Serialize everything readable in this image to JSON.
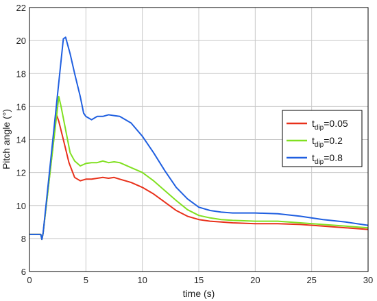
{
  "chart_data": {
    "type": "line",
    "xlabel": "time (s)",
    "ylabel": "Pitch angle (°)",
    "xlim": [
      0,
      30
    ],
    "ylim": [
      6,
      22
    ],
    "xticks": [
      0,
      5,
      10,
      15,
      20,
      25,
      30
    ],
    "yticks": [
      6,
      8,
      10,
      12,
      14,
      16,
      18,
      20,
      22
    ],
    "grid": true,
    "legend_position": "right",
    "series": [
      {
        "name": "t_dip=0.05",
        "legend_main": "t",
        "legend_sub": "dip",
        "legend_suffix": "=0.05",
        "color": "#e8301a",
        "x": [
          0,
          1.0,
          1.1,
          1.2,
          2.4,
          2.6,
          3.0,
          3.5,
          4.0,
          4.5,
          5.0,
          5.5,
          6.0,
          6.5,
          7.0,
          7.5,
          8.0,
          9.0,
          10.0,
          11.0,
          12.0,
          13.0,
          14.0,
          15.0,
          16.0,
          17.0,
          18.0,
          20.0,
          22.0,
          24.0,
          26.0,
          28.0,
          30.0
        ],
        "y": [
          8.25,
          8.25,
          7.95,
          8.3,
          15.5,
          15.1,
          14.0,
          12.6,
          11.7,
          11.5,
          11.6,
          11.6,
          11.65,
          11.7,
          11.65,
          11.7,
          11.6,
          11.4,
          11.1,
          10.7,
          10.2,
          9.7,
          9.35,
          9.15,
          9.05,
          9.0,
          8.95,
          8.9,
          8.9,
          8.85,
          8.75,
          8.65,
          8.55
        ]
      },
      {
        "name": "t_dip=0.2",
        "legend_main": "t",
        "legend_sub": "dip",
        "legend_suffix": "=0.2",
        "color": "#80e020",
        "x": [
          0,
          1.0,
          1.1,
          1.2,
          2.6,
          2.8,
          3.2,
          3.6,
          4.0,
          4.5,
          5.0,
          5.5,
          6.0,
          6.5,
          7.0,
          7.5,
          8.0,
          9.0,
          10.0,
          11.0,
          12.0,
          13.0,
          14.0,
          15.0,
          16.0,
          17.0,
          18.0,
          20.0,
          22.0,
          24.0,
          26.0,
          28.0,
          30.0
        ],
        "y": [
          8.25,
          8.25,
          7.95,
          8.3,
          16.6,
          16.0,
          14.6,
          13.2,
          12.7,
          12.4,
          12.55,
          12.6,
          12.6,
          12.7,
          12.6,
          12.65,
          12.6,
          12.3,
          12.0,
          11.5,
          10.9,
          10.3,
          9.75,
          9.4,
          9.25,
          9.15,
          9.1,
          9.05,
          9.05,
          8.95,
          8.85,
          8.75,
          8.65
        ]
      },
      {
        "name": "t_dip=0.8",
        "legend_main": "t",
        "legend_sub": "dip",
        "legend_suffix": "=0.8",
        "color": "#1f5fe0",
        "x": [
          0,
          1.0,
          1.1,
          1.2,
          3.0,
          3.2,
          3.6,
          4.0,
          4.5,
          4.8,
          5.0,
          5.5,
          6.0,
          6.5,
          7.0,
          7.5,
          8.0,
          9.0,
          10.0,
          11.0,
          12.0,
          13.0,
          14.0,
          15.0,
          16.0,
          17.0,
          18.0,
          20.0,
          22.0,
          24.0,
          26.0,
          28.0,
          30.0
        ],
        "y": [
          8.25,
          8.25,
          7.95,
          8.3,
          20.1,
          20.2,
          19.2,
          18.0,
          16.6,
          15.6,
          15.4,
          15.2,
          15.4,
          15.4,
          15.5,
          15.45,
          15.4,
          15.0,
          14.2,
          13.2,
          12.1,
          11.1,
          10.4,
          9.9,
          9.7,
          9.6,
          9.55,
          9.55,
          9.5,
          9.35,
          9.15,
          9.0,
          8.8
        ]
      }
    ]
  }
}
